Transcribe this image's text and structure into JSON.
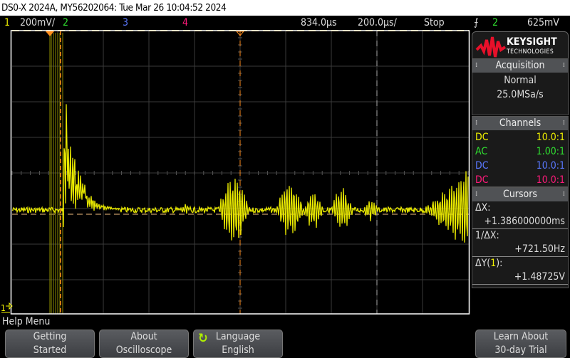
{
  "title": "DS0-X 2024A, MY56202064: Tue Mar 26 10:04:52 2024",
  "status": {
    "ch1": "1",
    "ch1_scale": "200mV/",
    "ch2": "2",
    "ch3": "3",
    "ch4": "4",
    "delay": "834.0µs",
    "timebase": "200.0µs/",
    "run_state": "Stop",
    "trigger_edge_icon": "rising-edge-icon",
    "trigger_source": "2",
    "trigger_level": "625mV"
  },
  "colors": {
    "ch1": "#f0f000",
    "ch2": "#30e030",
    "ch3": "#5a78ff",
    "ch4": "#ff1a7a",
    "cursor": "#ff8c1a",
    "logo": "#e8102a"
  },
  "logo": {
    "brand": "KEYSIGHT",
    "sub": "TECHNOLOGIES"
  },
  "acquisition": {
    "header": "Acquisition",
    "mode": "Normal",
    "rate": "25.0MSa/s"
  },
  "channels": {
    "header": "Channels",
    "items": [
      {
        "coupling": "DC",
        "probe": "10.0:1"
      },
      {
        "coupling": "AC",
        "probe": "1.00:1"
      },
      {
        "coupling": "DC",
        "probe": "10.0:1"
      },
      {
        "coupling": "DC",
        "probe": "10.0:1"
      }
    ]
  },
  "cursors": {
    "header": "Cursors",
    "dx_label": "ΔX:",
    "dx_value": "+1.386000000ms",
    "inv_label": "1/ΔX:",
    "inv_value": "+721.50Hz",
    "dy_label_pre": "ΔY(",
    "dy_label_ch": "1",
    "dy_label_post": "):",
    "dy_value": "+1.48725V"
  },
  "ground_marker": "1",
  "help": {
    "title": "Help Menu",
    "buttons": [
      {
        "line1": "Getting",
        "line2": "Started"
      },
      {
        "line1": "About",
        "line2": "Oscilloscope"
      },
      {
        "line1": "Language",
        "line2": "English",
        "icon": "refresh-icon"
      },
      {
        "line1": "Learn About",
        "line2": "30-day Trial"
      }
    ]
  }
}
